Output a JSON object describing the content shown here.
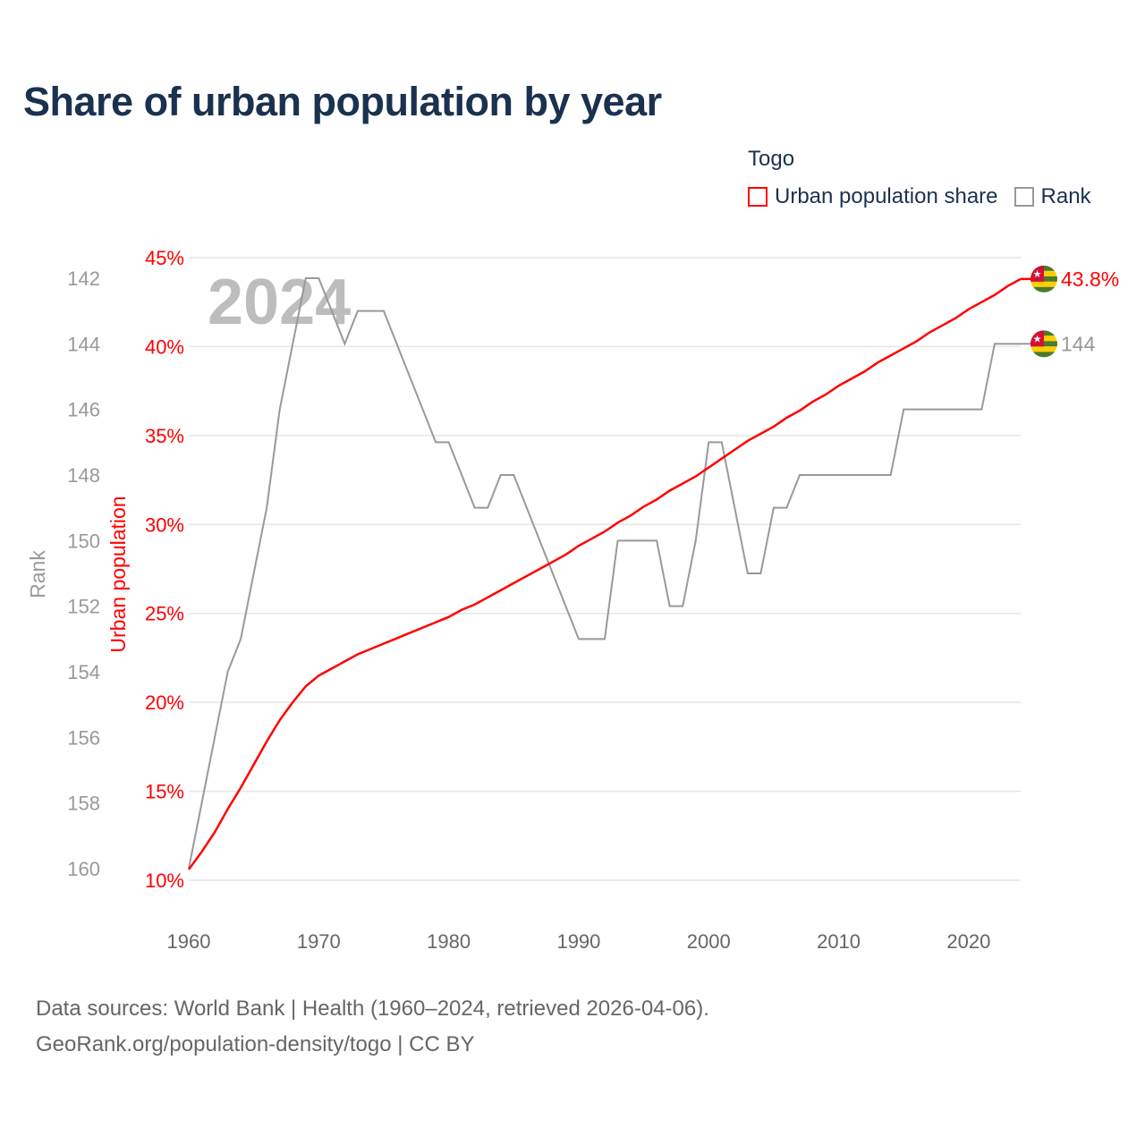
{
  "title": "Share of urban population by year",
  "legend": {
    "country": "Togo",
    "items": [
      {
        "label": "Urban population share",
        "color": "#ff0000"
      },
      {
        "label": "Rank",
        "color": "#999999"
      }
    ]
  },
  "watermark_year": "2024",
  "end_labels": {
    "urban": "43.8%",
    "rank": "144"
  },
  "flag_icon": "togo-flag-icon",
  "footer": {
    "line1": "Data sources: World Bank | Health (1960–2024, retrieved 2026-04-06).",
    "line2": "GeoRank.org/population-density/togo | CC BY"
  },
  "colors": {
    "urban": "#ff0000",
    "rank": "#999999",
    "title": "#1b3150"
  },
  "chart_data": {
    "type": "line",
    "title": "Share of urban population by year",
    "x": [
      1960,
      1961,
      1962,
      1963,
      1964,
      1965,
      1966,
      1967,
      1968,
      1969,
      1970,
      1971,
      1972,
      1973,
      1974,
      1975,
      1976,
      1977,
      1978,
      1979,
      1980,
      1981,
      1982,
      1983,
      1984,
      1985,
      1986,
      1987,
      1988,
      1989,
      1990,
      1991,
      1992,
      1993,
      1994,
      1995,
      1996,
      1997,
      1998,
      1999,
      2000,
      2001,
      2002,
      2003,
      2004,
      2005,
      2006,
      2007,
      2008,
      2009,
      2010,
      2011,
      2012,
      2013,
      2014,
      2015,
      2016,
      2017,
      2018,
      2019,
      2020,
      2021,
      2022,
      2023,
      2024
    ],
    "series": [
      {
        "name": "Urban population share",
        "axis": "left",
        "values": [
          10.6,
          11.6,
          12.7,
          14.0,
          15.2,
          16.5,
          17.8,
          19.0,
          20.0,
          20.9,
          21.5,
          21.9,
          22.3,
          22.7,
          23.0,
          23.3,
          23.6,
          23.9,
          24.2,
          24.5,
          24.8,
          25.2,
          25.5,
          25.9,
          26.3,
          26.7,
          27.1,
          27.5,
          27.9,
          28.3,
          28.8,
          29.2,
          29.6,
          30.1,
          30.5,
          31.0,
          31.4,
          31.9,
          32.3,
          32.7,
          33.2,
          33.7,
          34.2,
          34.7,
          35.1,
          35.5,
          36.0,
          36.4,
          36.9,
          37.3,
          37.8,
          38.2,
          38.6,
          39.1,
          39.5,
          39.9,
          40.3,
          40.8,
          41.2,
          41.6,
          42.1,
          42.5,
          42.9,
          43.4,
          43.8
        ]
      },
      {
        "name": "Rank",
        "axis": "right-inverted",
        "values": [
          160,
          158,
          156,
          154,
          153,
          151,
          149,
          146,
          144,
          142,
          142,
          143,
          144,
          143,
          143,
          143,
          144,
          145,
          146,
          147,
          147,
          148,
          149,
          149,
          148,
          148,
          149,
          150,
          151,
          152,
          153,
          153,
          153,
          150,
          150,
          150,
          150,
          152,
          152,
          150,
          147,
          147,
          149,
          151,
          151,
          149,
          149,
          148,
          148,
          148,
          148,
          148,
          148,
          148,
          148,
          146,
          146,
          146,
          146,
          146,
          146,
          146,
          144,
          144,
          144
        ]
      }
    ],
    "xlabel": "",
    "ylabel_left": "Urban population",
    "ylabel_rank": "Rank",
    "xticks": [
      1960,
      1970,
      1980,
      1990,
      2000,
      2010,
      2020
    ],
    "yticks_left": [
      "10%",
      "15%",
      "20%",
      "25%",
      "30%",
      "35%",
      "40%",
      "45%"
    ],
    "yticks_left_values": [
      10,
      15,
      20,
      25,
      30,
      35,
      40,
      45
    ],
    "yticks_rank": [
      142,
      144,
      146,
      148,
      150,
      152,
      154,
      156,
      158,
      160
    ],
    "ylim_left": [
      10,
      45
    ],
    "ylim_rank": [
      142,
      160
    ],
    "xlim": [
      1960,
      2024
    ],
    "grid": true
  }
}
